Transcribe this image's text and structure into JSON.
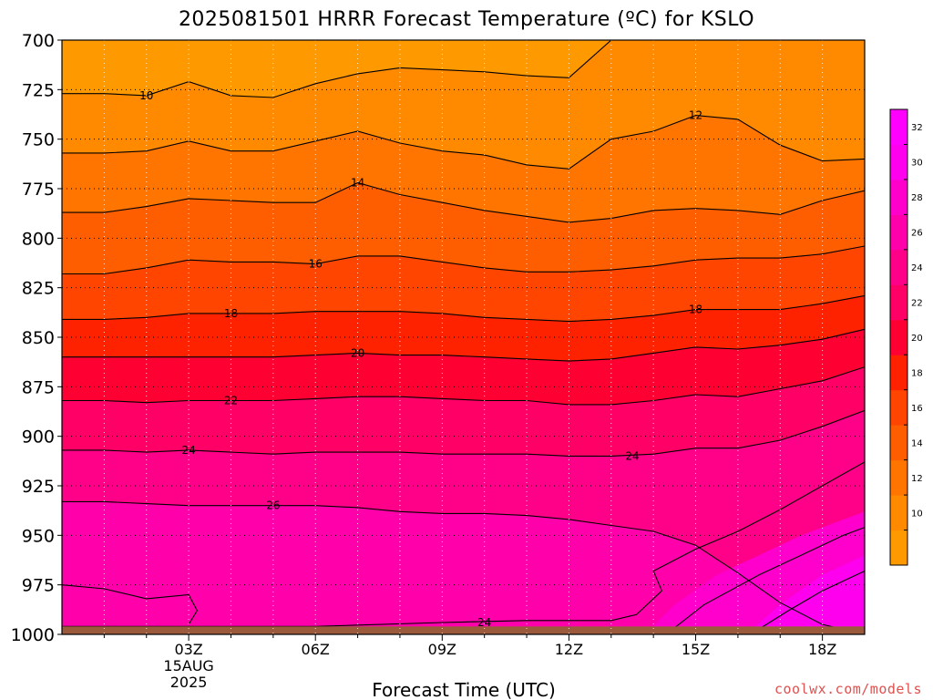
{
  "title": "2025081501 HRRR Forecast Temperature (ºC) for KSLO",
  "credit": "coolwx.com/models",
  "chart_data": {
    "type": "heatmap",
    "title": "2025081501 HRRR Forecast Temperature (ºC) for KSLO",
    "xlabel": "Forecast Time (UTC)",
    "ylabel": "",
    "x_hours": [
      1,
      2,
      3,
      4,
      5,
      6,
      7,
      8,
      9,
      10,
      11,
      12,
      13,
      14,
      15,
      16,
      17,
      18,
      19
    ],
    "x_ticks": [
      {
        "hour": 3,
        "label": "03Z",
        "sub": [
          "15AUG",
          "2025"
        ]
      },
      {
        "hour": 6,
        "label": "06Z",
        "sub": []
      },
      {
        "hour": 9,
        "label": "09Z",
        "sub": []
      },
      {
        "hour": 12,
        "label": "12Z",
        "sub": []
      },
      {
        "hour": 15,
        "label": "15Z",
        "sub": []
      },
      {
        "hour": 18,
        "label": "18Z",
        "sub": []
      }
    ],
    "y_ticks": [
      700,
      725,
      750,
      775,
      800,
      825,
      850,
      875,
      900,
      925,
      950,
      975,
      1000
    ],
    "ylim": [
      700,
      1000
    ],
    "y_inverted": true,
    "contour_levels": [
      10,
      12,
      14,
      16,
      18,
      20,
      22,
      24,
      26
    ],
    "contours": [
      {
        "level": 10,
        "points": [
          [
            1,
            727
          ],
          [
            2,
            728
          ],
          [
            3,
            721
          ],
          [
            4,
            728
          ],
          [
            5,
            729
          ],
          [
            6,
            722
          ],
          [
            7,
            717
          ],
          [
            8,
            714
          ],
          [
            9,
            715
          ],
          [
            10,
            716
          ],
          [
            11,
            718
          ],
          [
            12,
            719
          ],
          [
            13,
            700
          ]
        ]
      },
      {
        "level": 12,
        "points": [
          [
            1,
            757
          ],
          [
            2,
            756
          ],
          [
            3,
            751
          ],
          [
            4,
            756
          ],
          [
            5,
            756
          ],
          [
            6,
            751
          ],
          [
            7,
            746
          ],
          [
            8,
            752
          ],
          [
            9,
            756
          ],
          [
            10,
            758
          ],
          [
            11,
            763
          ],
          [
            12,
            765
          ],
          [
            13,
            750
          ],
          [
            14,
            746
          ],
          [
            15,
            738
          ],
          [
            16,
            740
          ],
          [
            17,
            753
          ],
          [
            18,
            761
          ],
          [
            19,
            760
          ]
        ]
      },
      {
        "level": 14,
        "points": [
          [
            1,
            787
          ],
          [
            2,
            784
          ],
          [
            3,
            780
          ],
          [
            4,
            781
          ],
          [
            5,
            782
          ],
          [
            6,
            782
          ],
          [
            7,
            772
          ],
          [
            8,
            778
          ],
          [
            9,
            782
          ],
          [
            10,
            786
          ],
          [
            11,
            789
          ],
          [
            12,
            792
          ],
          [
            13,
            790
          ],
          [
            14,
            786
          ],
          [
            15,
            785
          ],
          [
            16,
            786
          ],
          [
            17,
            788
          ],
          [
            18,
            781
          ],
          [
            19,
            776
          ]
        ]
      },
      {
        "level": 16,
        "points": [
          [
            1,
            818
          ],
          [
            2,
            815
          ],
          [
            3,
            811
          ],
          [
            4,
            812
          ],
          [
            5,
            812
          ],
          [
            6,
            813
          ],
          [
            7,
            809
          ],
          [
            8,
            809
          ],
          [
            9,
            812
          ],
          [
            10,
            815
          ],
          [
            11,
            817
          ],
          [
            12,
            817
          ],
          [
            13,
            816
          ],
          [
            14,
            814
          ],
          [
            15,
            811
          ],
          [
            16,
            810
          ],
          [
            17,
            810
          ],
          [
            18,
            808
          ],
          [
            19,
            804
          ]
        ]
      },
      {
        "level": 18,
        "points": [
          [
            1,
            841
          ],
          [
            2,
            840
          ],
          [
            3,
            838
          ],
          [
            4,
            838
          ],
          [
            5,
            838
          ],
          [
            6,
            837
          ],
          [
            7,
            837
          ],
          [
            8,
            837
          ],
          [
            9,
            838
          ],
          [
            10,
            840
          ],
          [
            11,
            841
          ],
          [
            12,
            842
          ],
          [
            13,
            841
          ],
          [
            14,
            839
          ],
          [
            15,
            836
          ],
          [
            16,
            836
          ],
          [
            17,
            836
          ],
          [
            18,
            833
          ],
          [
            19,
            829
          ]
        ]
      },
      {
        "level": 20,
        "points": [
          [
            1,
            860
          ],
          [
            2,
            860
          ],
          [
            3,
            860
          ],
          [
            4,
            860
          ],
          [
            5,
            860
          ],
          [
            6,
            859
          ],
          [
            7,
            858
          ],
          [
            8,
            859
          ],
          [
            9,
            859
          ],
          [
            10,
            860
          ],
          [
            11,
            861
          ],
          [
            12,
            862
          ],
          [
            13,
            861
          ],
          [
            14,
            858
          ],
          [
            15,
            855
          ],
          [
            16,
            856
          ],
          [
            17,
            854
          ],
          [
            18,
            851
          ],
          [
            19,
            846
          ]
        ]
      },
      {
        "level": 22,
        "points": [
          [
            1,
            882
          ],
          [
            2,
            883
          ],
          [
            3,
            882
          ],
          [
            4,
            882
          ],
          [
            5,
            882
          ],
          [
            6,
            881
          ],
          [
            7,
            880
          ],
          [
            8,
            880
          ],
          [
            9,
            881
          ],
          [
            10,
            882
          ],
          [
            11,
            882
          ],
          [
            12,
            884
          ],
          [
            13,
            884
          ],
          [
            14,
            882
          ],
          [
            15,
            879
          ],
          [
            16,
            880
          ],
          [
            17,
            876
          ],
          [
            18,
            872
          ],
          [
            19,
            865
          ]
        ]
      },
      {
        "level": 24,
        "points": [
          [
            1,
            907
          ],
          [
            2,
            908
          ],
          [
            3,
            907
          ],
          [
            4,
            908
          ],
          [
            5,
            909
          ],
          [
            6,
            908
          ],
          [
            7,
            908
          ],
          [
            8,
            908
          ],
          [
            9,
            909
          ],
          [
            10,
            909
          ],
          [
            11,
            909
          ],
          [
            12,
            910
          ],
          [
            13,
            910
          ],
          [
            14,
            909
          ],
          [
            15,
            906
          ],
          [
            16,
            906
          ],
          [
            17,
            902
          ],
          [
            18,
            895
          ],
          [
            19,
            887
          ]
        ]
      },
      {
        "level": 26,
        "points": [
          [
            1,
            933
          ],
          [
            2,
            934
          ],
          [
            3,
            935
          ],
          [
            4,
            935
          ],
          [
            5,
            935
          ],
          [
            6,
            935
          ],
          [
            7,
            936
          ],
          [
            8,
            938
          ],
          [
            9,
            939
          ],
          [
            10,
            939
          ],
          [
            11,
            940
          ],
          [
            12,
            942
          ],
          [
            13,
            945
          ],
          [
            14,
            948
          ],
          [
            15,
            955
          ],
          [
            16,
            969
          ],
          [
            17,
            984
          ],
          [
            18,
            995
          ],
          [
            19,
            1000
          ]
        ]
      }
    ],
    "contour_labels": [
      {
        "text": "10",
        "hour": 2.0,
        "p": 728
      },
      {
        "text": "12",
        "hour": 15.0,
        "p": 738
      },
      {
        "text": "14",
        "hour": 7.0,
        "p": 772
      },
      {
        "text": "16",
        "hour": 6.0,
        "p": 813
      },
      {
        "text": "18",
        "hour": 4.0,
        "p": 838
      },
      {
        "text": "18",
        "hour": 15.0,
        "p": 836
      },
      {
        "text": "20",
        "hour": 7.0,
        "p": 858
      },
      {
        "text": "22",
        "hour": 4.0,
        "p": 882
      },
      {
        "text": "24",
        "hour": 3.0,
        "p": 907
      },
      {
        "text": "24",
        "hour": 13.5,
        "p": 910
      },
      {
        "text": "26",
        "hour": 5.0,
        "p": 935
      },
      {
        "text": "24",
        "hour": 10.0,
        "p": 994
      }
    ],
    "fill_colors": [
      "#ff9900",
      "#ff8a00",
      "#ff7500",
      "#ff5e00",
      "#ff4500",
      "#ff2200",
      "#ff0033",
      "#ff0066",
      "#ff0088",
      "#ff00aa",
      "#ff00cc",
      "#ff00ee"
    ],
    "colorbar": {
      "labels": [
        10,
        12,
        14,
        16,
        18,
        20,
        22,
        24,
        26,
        28,
        30,
        32
      ],
      "colors": [
        "#ff9900",
        "#ff8a00",
        "#ff7500",
        "#ff5e00",
        "#ff4500",
        "#ff2200",
        "#ff0033",
        "#ff0066",
        "#ff0088",
        "#ff00aa",
        "#ff00cc",
        "#ff00ee",
        "#ff00ff"
      ]
    },
    "ground_color": "#9c5a3c",
    "grid": true
  }
}
